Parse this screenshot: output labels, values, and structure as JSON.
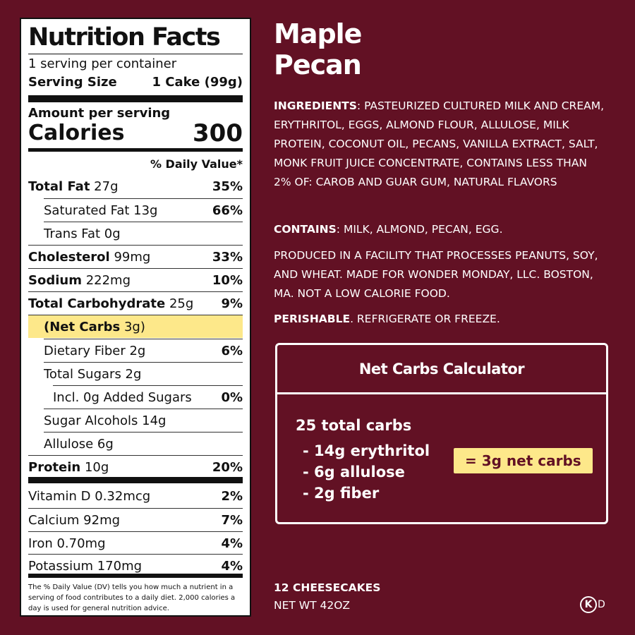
{
  "nutrition": {
    "title": "Nutrition Facts",
    "servings": "1 serving per container",
    "serving_size_label": "Serving Size",
    "serving_size_value": "1 Cake (99g)",
    "amount_per_serving": "Amount per serving",
    "calories_label": "Calories",
    "calories_value": "300",
    "dv_header": "% Daily Value*",
    "rows": [
      {
        "label": "Total Fat",
        "amount": "27g",
        "pct": "35%"
      },
      {
        "label": "Saturated Fat 13g",
        "amount": "",
        "pct": "66%"
      },
      {
        "label": "Trans Fat 0g",
        "amount": "",
        "pct": ""
      },
      {
        "label": "Cholesterol",
        "amount": "99mg",
        "pct": "33%"
      },
      {
        "label": "Sodium",
        "amount": "222mg",
        "pct": "10%"
      },
      {
        "label": "Total Carbohydrate",
        "amount": "25g",
        "pct": "9%"
      },
      {
        "label": "(Net Carbs",
        "amount": "3g)",
        "pct": ""
      },
      {
        "label": "Dietary Fiber 2g",
        "amount": "",
        "pct": "6%"
      },
      {
        "label": "Total Sugars 2g",
        "amount": "",
        "pct": ""
      },
      {
        "label": "Incl. 0g Added Sugars",
        "amount": "",
        "pct": "0%"
      },
      {
        "label": "Sugar Alcohols 14g",
        "amount": "",
        "pct": ""
      },
      {
        "label": "Allulose 6g",
        "amount": "",
        "pct": ""
      },
      {
        "label": "Protein",
        "amount": "10g",
        "pct": "20%"
      },
      {
        "label": "Vitamin D 0.32mcg",
        "amount": "",
        "pct": "2%"
      },
      {
        "label": "Calcium 92mg",
        "amount": "",
        "pct": "7%"
      },
      {
        "label": "Iron 0.70mg",
        "amount": "",
        "pct": "4%"
      },
      {
        "label": "Potassium 170mg",
        "amount": "",
        "pct": "4%"
      }
    ],
    "footnote": "The % Daily Value (DV) tells you how much a nutrient in a serving of food contributes to a daily diet. 2,000 calories a day is used for general nutrition advice."
  },
  "product": {
    "title_line1": "Maple",
    "title_line2": "Pecan"
  },
  "ingredients": {
    "label": "INGREDIENTS",
    "text": ": PASTEURIZED CULTURED MILK AND CREAM, ERYTHRITOL, EGGS, ALMOND FLOUR, ALLULOSE, MILK PROTEIN, COCONUT OIL, PECANS, VANILLA EXTRACT, SALT, MONK FRUIT JUICE CONCENTRATE, CONTAINS LESS THAN 2% OF: CAROB AND GUAR GUM, NATURAL FLAVORS"
  },
  "contains": {
    "label": "CONTAINS",
    "text": ": MILK, ALMOND, PECAN, EGG."
  },
  "facility": "PRODUCED IN A FACILITY THAT PROCESSES PEANUTS, SOY, AND WHEAT. MADE FOR WONDER MONDAY, LLC. BOSTON, MA. NOT A LOW CALORIE FOOD.",
  "perishable": {
    "label": "PERISHABLE",
    "text": ". REFRIGERATE OR FREEZE."
  },
  "calculator": {
    "title": "Net Carbs Calculator",
    "total": "25 total carbs",
    "items": [
      "- 14g erythritol",
      "- 6g allulose",
      "- 2g fiber"
    ],
    "result": "= 3g net carbs"
  },
  "footer": {
    "count": "12 CHEESECAKES",
    "net_wt": "NET WT 42OZ",
    "kosher_symbol": "K",
    "kosher_suffix": "D"
  },
  "colors": {
    "background": "#621124",
    "highlight": "#fde88a"
  }
}
